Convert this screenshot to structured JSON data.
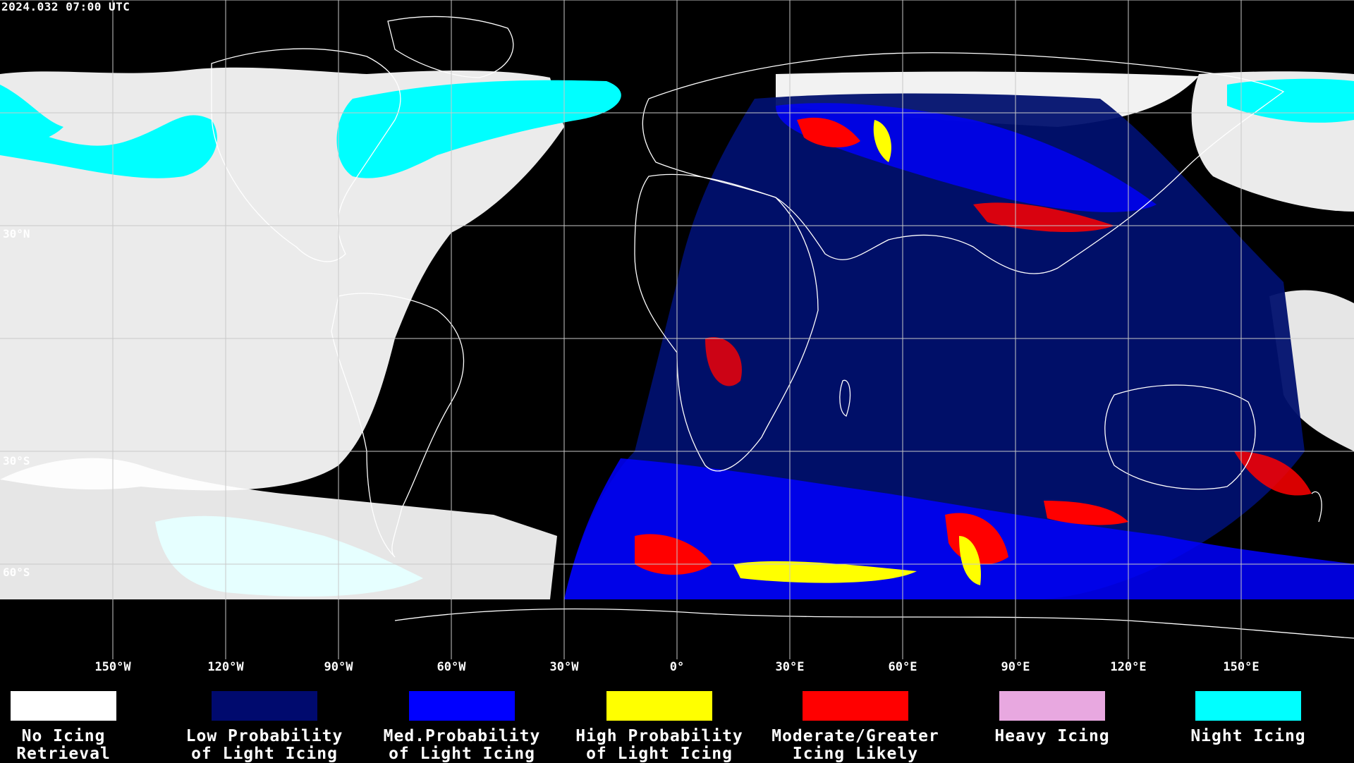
{
  "header": {
    "timestamp": "2024.032 07:00 UTC"
  },
  "map": {
    "longitude_labels": [
      "150°W",
      "120°W",
      "90°W",
      "60°W",
      "30°W",
      "0°",
      "30°E",
      "60°E",
      "90°E",
      "120°E",
      "150°E"
    ],
    "latitude_labels": [
      "30°N",
      "30°S",
      "60°S"
    ],
    "colors": {
      "background": "#000000",
      "grid": "#c8c8c8",
      "coastline": "#ffffff"
    }
  },
  "legend": {
    "items": [
      {
        "label": "No Icing\nRetrieval",
        "color": "#ffffff"
      },
      {
        "label": "Low Probability\nof Light Icing",
        "color": "#000a6e"
      },
      {
        "label": "Med.Probability\nof Light Icing",
        "color": "#0000ff"
      },
      {
        "label": "High Probability\nof Light Icing",
        "color": "#ffff00"
      },
      {
        "label": "Moderate/Greater\nIcing Likely",
        "color": "#ff0000"
      },
      {
        "label": "Heavy Icing",
        "color": "#e8a8e0"
      },
      {
        "label": "Night Icing",
        "color": "#00ffff"
      }
    ]
  }
}
